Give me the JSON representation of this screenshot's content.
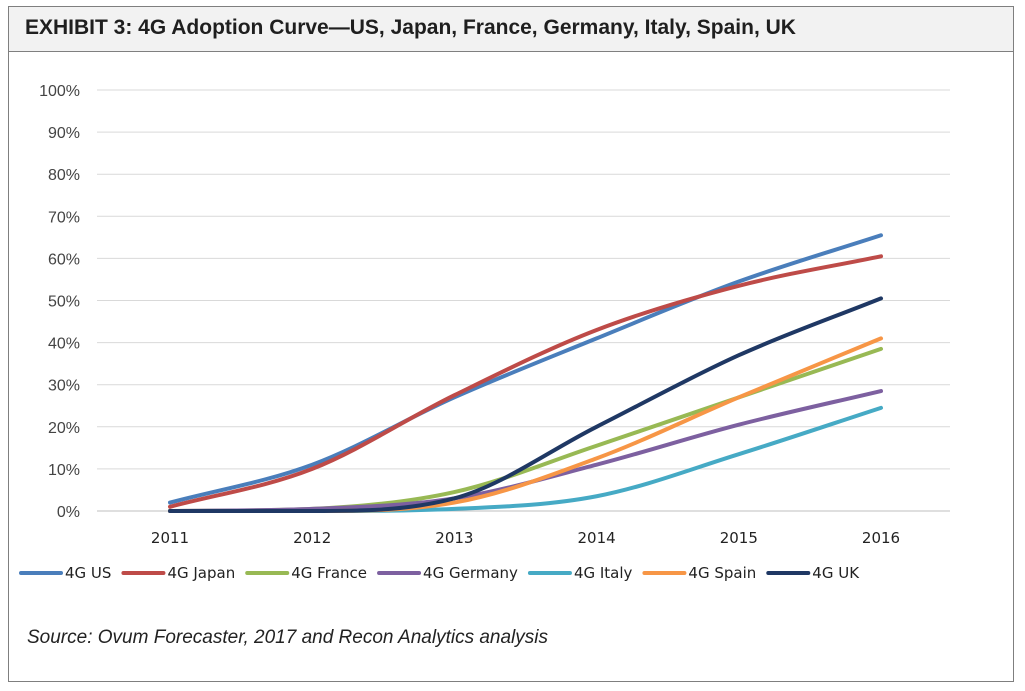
{
  "title": "EXHIBIT 3: 4G Adoption Curve—US, Japan, France, Germany, Italy, Spain, UK",
  "source": "Source: Ovum Forecaster, 2017 and Recon Analytics analysis",
  "chart_data": {
    "type": "line",
    "title": "EXHIBIT 3: 4G Adoption Curve—US, Japan, France, Germany, Italy, Spain, UK",
    "xlabel": "",
    "ylabel": "",
    "ylim": [
      0,
      100
    ],
    "yticks": [
      "0%",
      "10%",
      "20%",
      "30%",
      "40%",
      "50%",
      "60%",
      "70%",
      "80%",
      "90%",
      "100%"
    ],
    "categories": [
      "2011",
      "2012",
      "2013",
      "2014",
      "2015",
      "2016"
    ],
    "grid": "horizontal",
    "legend_position": "bottom",
    "smooth": true,
    "series": [
      {
        "name": "4G US",
        "color": "#4a7ebb",
        "values": [
          2,
          11,
          27,
          41,
          54.5,
          65.5
        ]
      },
      {
        "name": "4G Japan",
        "color": "#be4b48",
        "values": [
          1,
          10,
          27.5,
          43,
          53.5,
          60.5
        ]
      },
      {
        "name": "4G France",
        "color": "#98b954",
        "values": [
          0,
          0.5,
          4.5,
          15.5,
          27,
          38.5
        ]
      },
      {
        "name": "4G Germany",
        "color": "#7d60a0",
        "values": [
          0,
          0.5,
          3,
          11,
          20.5,
          28.5
        ]
      },
      {
        "name": "4G Italy",
        "color": "#46aac5",
        "values": [
          0,
          0,
          0.5,
          3.5,
          13.5,
          24.5
        ]
      },
      {
        "name": "4G Spain",
        "color": "#f79646",
        "values": [
          0,
          0,
          2,
          12.5,
          27,
          41
        ]
      },
      {
        "name": "4G UK",
        "color": "#1f3864",
        "values": [
          0,
          0,
          3,
          20,
          37,
          50.5
        ]
      }
    ]
  }
}
